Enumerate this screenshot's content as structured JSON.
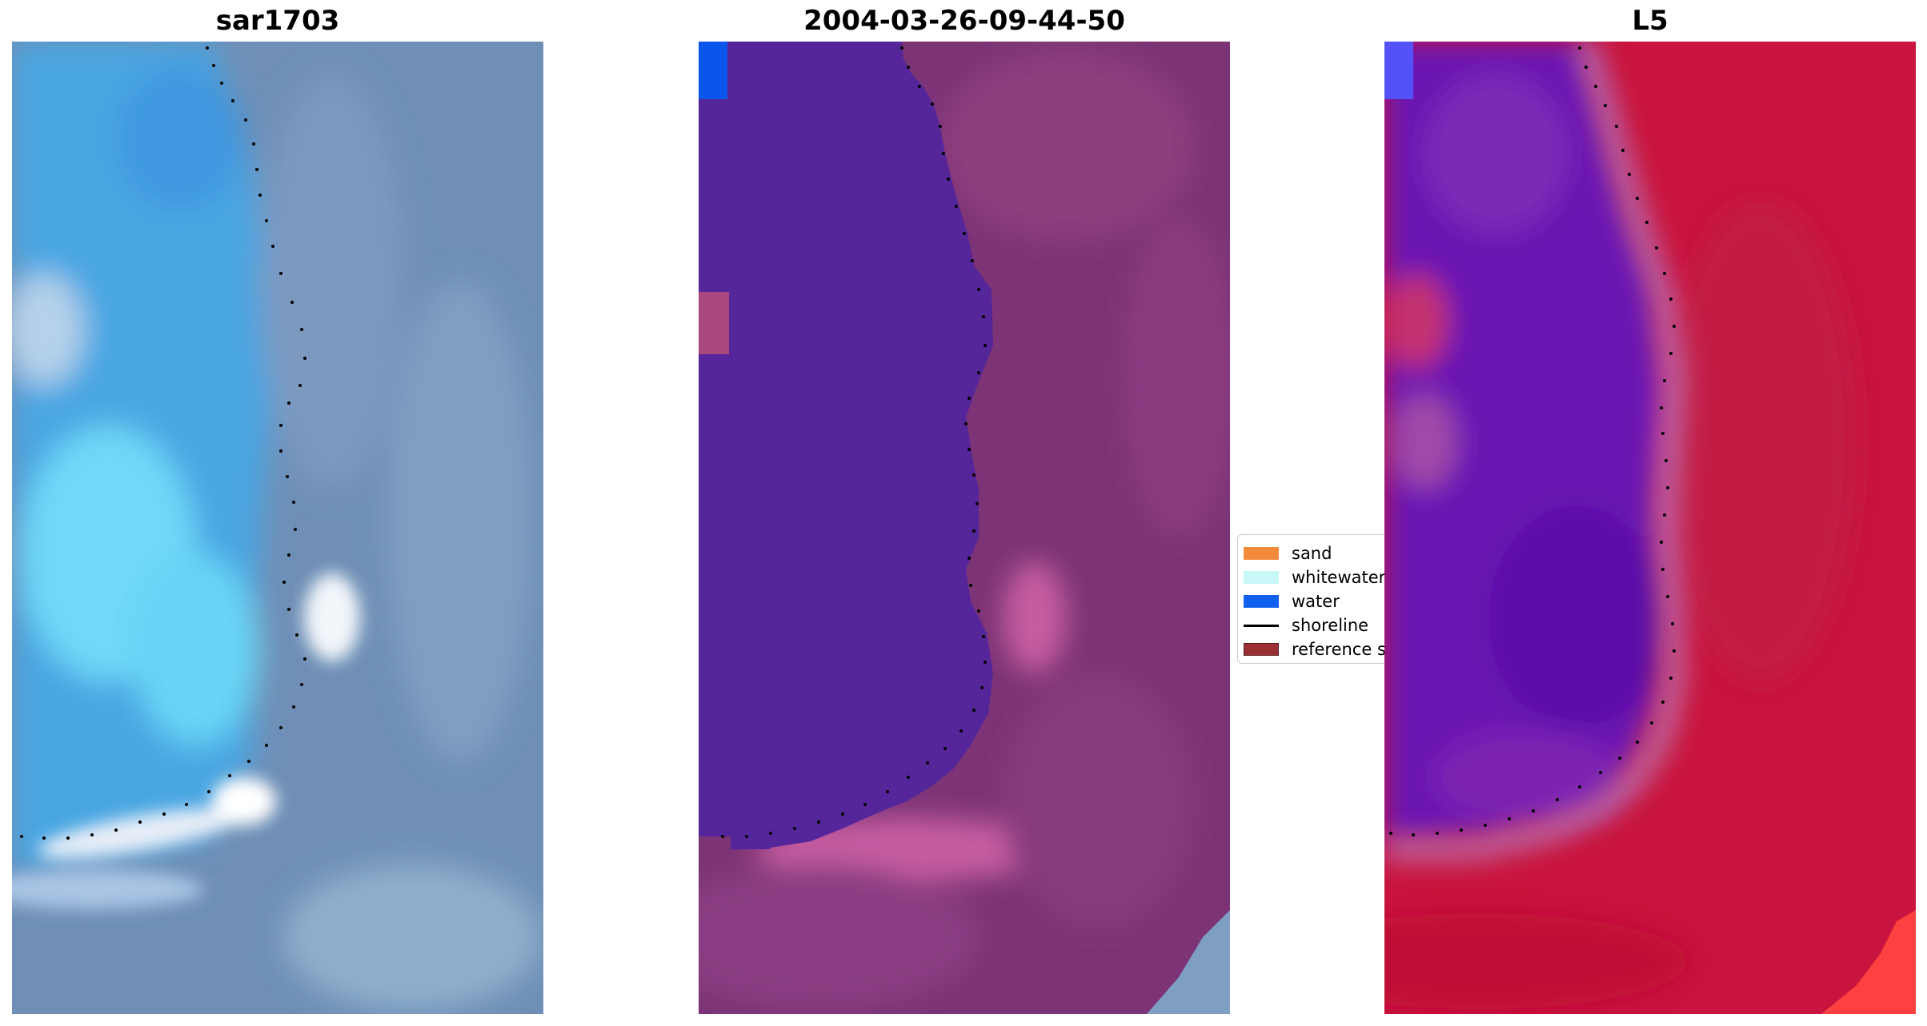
{
  "panels": {
    "left": {
      "title": "sar1703"
    },
    "middle": {
      "title": "2004-03-26-09-44-50"
    },
    "right": {
      "title": "L5"
    }
  },
  "legend": {
    "items": [
      {
        "label": "sand",
        "color": "#f48a3c"
      },
      {
        "label": "whitewater",
        "color": "#c8f8f8"
      },
      {
        "label": "water",
        "color": "#1060f0"
      },
      {
        "label": "shoreline",
        "color": "#000000"
      },
      {
        "label": "reference s",
        "color": "#9a3034"
      }
    ]
  },
  "colors": {
    "left_base": "#6f8fb6",
    "left_water": "#4aa6e2",
    "left_light": "#6fd8f8",
    "left_white": "#f2f6fa",
    "middle_water": "#55259a",
    "middle_land": "#7c3476",
    "middle_pink": "#c65ca0",
    "middle_blue_top": "#0a55ea",
    "right_water": "#6a18b2",
    "right_land": "#c8143e",
    "right_shore": "#c06fa7",
    "right_blue_top": "#5252f8",
    "right_red_corner": "#ff4040",
    "shoreline_dots": "#000000"
  }
}
